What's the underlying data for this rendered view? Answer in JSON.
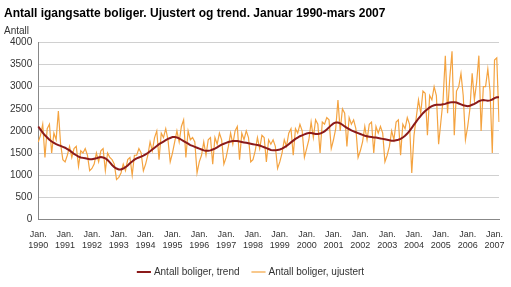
{
  "chart_data": {
    "type": "line",
    "title": "Antall igangsatte boliger. Ujustert og trend. Januar 1990-mars 2007",
    "y_label": "Antall",
    "categories": [
      "Jan. 1990",
      null,
      null,
      null,
      null,
      null,
      null,
      null,
      null,
      null,
      null,
      null,
      "Jan. 1991",
      null,
      null,
      null,
      null,
      null,
      null,
      null,
      null,
      null,
      null,
      null,
      "Jan. 1992",
      null,
      null,
      null,
      null,
      null,
      null,
      null,
      null,
      null,
      null,
      null,
      "Jan. 1993",
      null,
      null,
      null,
      null,
      null,
      null,
      null,
      null,
      null,
      null,
      null,
      "Jan. 1994",
      null,
      null,
      null,
      null,
      null,
      null,
      null,
      null,
      null,
      null,
      null,
      "Jan. 1995",
      null,
      null,
      null,
      null,
      null,
      null,
      null,
      null,
      null,
      null,
      null,
      "Jan. 1996",
      null,
      null,
      null,
      null,
      null,
      null,
      null,
      null,
      null,
      null,
      null,
      "Jan. 1997",
      null,
      null,
      null,
      null,
      null,
      null,
      null,
      null,
      null,
      null,
      null,
      "Jan. 1998",
      null,
      null,
      null,
      null,
      null,
      null,
      null,
      null,
      null,
      null,
      null,
      "Jan. 1999",
      null,
      null,
      null,
      null,
      null,
      null,
      null,
      null,
      null,
      null,
      null,
      "Jan. 2000",
      null,
      null,
      null,
      null,
      null,
      null,
      null,
      null,
      null,
      null,
      null,
      "Jan. 2001",
      null,
      null,
      null,
      null,
      null,
      null,
      null,
      null,
      null,
      null,
      null,
      "Jan. 2002",
      null,
      null,
      null,
      null,
      null,
      null,
      null,
      null,
      null,
      null,
      null,
      "Jan. 2003",
      null,
      null,
      null,
      null,
      null,
      null,
      null,
      null,
      null,
      null,
      null,
      "Jan. 2004",
      null,
      null,
      null,
      null,
      null,
      null,
      null,
      null,
      null,
      null,
      null,
      "Jan. 2005",
      null,
      null,
      null,
      null,
      null,
      null,
      null,
      null,
      null,
      null,
      null,
      "Jan. 2006",
      null,
      null,
      null,
      null,
      null,
      null,
      null,
      null,
      null,
      null,
      null,
      "Jan. 2007",
      null,
      null
    ],
    "series": [
      {
        "name": "Antall boliger, ujustert",
        "color": "#f4a340",
        "values": [
          1750,
          1900,
          2150,
          1400,
          2050,
          2150,
          1500,
          1950,
          1800,
          2450,
          1700,
          1350,
          1300,
          1450,
          1650,
          1400,
          1600,
          1650,
          1200,
          1550,
          1500,
          1600,
          1450,
          1100,
          1150,
          1250,
          1500,
          1300,
          1550,
          1600,
          1100,
          1500,
          1400,
          1350,
          1250,
          900,
          950,
          1050,
          1250,
          1100,
          1350,
          1400,
          1000,
          1450,
          1450,
          1600,
          1500,
          1100,
          1250,
          1450,
          1750,
          1550,
          1850,
          2000,
          1350,
          1950,
          1850,
          2050,
          1800,
          1300,
          1500,
          1750,
          2000,
          1750,
          2100,
          2250,
          1400,
          2000,
          1800,
          1850,
          1750,
          1050,
          1300,
          1450,
          1750,
          1450,
          1800,
          1850,
          1250,
          1850,
          1700,
          1950,
          1800,
          1250,
          1400,
          1650,
          1950,
          1700,
          2000,
          2100,
          1350,
          1950,
          1800,
          2000,
          1850,
          1300,
          1350,
          1550,
          1850,
          1600,
          1900,
          1850,
          1300,
          1800,
          1700,
          1800,
          1650,
          1150,
          1300,
          1500,
          1800,
          1650,
          1950,
          2050,
          1450,
          2050,
          1950,
          2150,
          2000,
          1400,
          1600,
          1800,
          2200,
          1850,
          2250,
          2150,
          1500,
          2200,
          2150,
          2300,
          2250,
          1600,
          1800,
          2050,
          2700,
          2000,
          2500,
          2400,
          1650,
          2300,
          2150,
          2250,
          2050,
          1400,
          1550,
          1750,
          2100,
          1800,
          2150,
          2200,
          1500,
          2100,
          1950,
          2100,
          1950,
          1300,
          1450,
          1650,
          2000,
          1800,
          2200,
          2250,
          1450,
          2150,
          2050,
          2300,
          2150,
          1050,
          1900,
          2300,
          2700,
          2400,
          2900,
          2850,
          1900,
          2800,
          2700,
          3000,
          2800,
          1700,
          2200,
          2700,
          3700,
          2400,
          3200,
          3800,
          1900,
          2900,
          3000,
          3300,
          2800,
          1800,
          2100,
          2500,
          3300,
          2700,
          3100,
          3700,
          2000,
          3000,
          3000,
          3400,
          2900,
          1500,
          3600,
          3650,
          2200
        ]
      },
      {
        "name": "Antall boliger, trend",
        "color": "#8b1a1a",
        "values": [
          2100,
          2030,
          1960,
          1900,
          1850,
          1800,
          1760,
          1730,
          1700,
          1680,
          1660,
          1640,
          1620,
          1590,
          1560,
          1520,
          1480,
          1450,
          1420,
          1400,
          1390,
          1380,
          1370,
          1360,
          1360,
          1370,
          1380,
          1400,
          1410,
          1400,
          1380,
          1340,
          1290,
          1230,
          1180,
          1150,
          1130,
          1130,
          1150,
          1180,
          1220,
          1270,
          1310,
          1350,
          1380,
          1400,
          1420,
          1440,
          1470,
          1500,
          1540,
          1580,
          1620,
          1660,
          1700,
          1730,
          1760,
          1790,
          1820,
          1840,
          1860,
          1860,
          1850,
          1830,
          1800,
          1770,
          1740,
          1710,
          1680,
          1660,
          1640,
          1620,
          1600,
          1580,
          1560,
          1550,
          1550,
          1560,
          1580,
          1600,
          1630,
          1660,
          1690,
          1710,
          1730,
          1750,
          1760,
          1770,
          1770,
          1770,
          1760,
          1750,
          1740,
          1730,
          1720,
          1710,
          1700,
          1690,
          1680,
          1670,
          1650,
          1630,
          1610,
          1590,
          1570,
          1560,
          1560,
          1570,
          1580,
          1600,
          1630,
          1660,
          1700,
          1740,
          1780,
          1820,
          1850,
          1880,
          1900,
          1920,
          1940,
          1950,
          1950,
          1940,
          1930,
          1930,
          1940,
          1960,
          1990,
          2030,
          2080,
          2130,
          2170,
          2190,
          2190,
          2170,
          2140,
          2100,
          2070,
          2040,
          2010,
          1990,
          1970,
          1950,
          1930,
          1910,
          1890,
          1880,
          1870,
          1860,
          1850,
          1850,
          1840,
          1830,
          1820,
          1810,
          1800,
          1790,
          1780,
          1780,
          1790,
          1800,
          1820,
          1850,
          1890,
          1940,
          2000,
          2070,
          2140,
          2210,
          2280,
          2340,
          2400,
          2450,
          2490,
          2530,
          2560,
          2580,
          2590,
          2590,
          2590,
          2600,
          2610,
          2630,
          2640,
          2650,
          2650,
          2640,
          2620,
          2600,
          2580,
          2570,
          2560,
          2570,
          2590,
          2610,
          2640,
          2670,
          2690,
          2700,
          2690,
          2680,
          2690,
          2710,
          2740,
          2760,
          2760
        ]
      }
    ],
    "ylim": [
      0,
      4000
    ],
    "yticks": [
      0,
      500,
      1000,
      1500,
      2000,
      2500,
      3000,
      3500,
      4000
    ],
    "grid": true,
    "legend": "bottom"
  }
}
